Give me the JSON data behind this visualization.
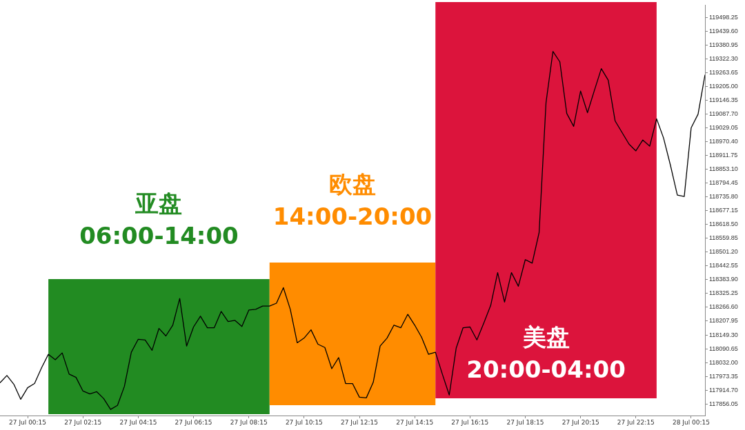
{
  "chart_data": {
    "type": "line",
    "x": [
      "--07-26T23:15",
      "--07-26T23:30",
      "--07-26T23:45",
      "--07-27T00:00",
      "--07-27T00:15",
      "--07-27T00:30",
      "--07-27T00:45",
      "--07-27T01:00",
      "--07-27T01:15",
      "--07-27T01:30",
      "--07-27T01:45",
      "--07-27T02:00",
      "--07-27T02:15",
      "--07-27T02:30",
      "--07-27T02:45",
      "--07-27T03:00",
      "--07-27T03:15",
      "--07-27T03:30",
      "--07-27T03:45",
      "--07-27T04:00",
      "--07-27T04:15",
      "--07-27T04:30",
      "--07-27T04:45",
      "--07-27T05:00",
      "--07-27T05:15",
      "--07-27T05:30",
      "--07-27T05:45",
      "--07-27T06:00",
      "--07-27T06:15",
      "--07-27T06:30",
      "--07-27T06:45",
      "--07-27T07:00",
      "--07-27T07:15",
      "--07-27T07:30",
      "--07-27T07:45",
      "--07-27T08:00",
      "--07-27T08:15",
      "--07-27T08:30",
      "--07-27T08:45",
      "--07-27T09:00",
      "--07-27T09:15",
      "--07-27T09:30",
      "--07-27T09:45",
      "--07-27T10:00",
      "--07-27T10:15",
      "--07-27T10:30",
      "--07-27T10:45",
      "--07-27T11:00",
      "--07-27T11:15",
      "--07-27T11:30",
      "--07-27T11:45",
      "--07-27T12:00",
      "--07-27T12:15",
      "--07-27T12:30",
      "--07-27T12:45",
      "--07-27T13:00",
      "--07-27T13:15",
      "--07-27T13:30",
      "--07-27T13:45",
      "--07-27T14:00",
      "--07-27T14:15",
      "--07-27T14:30",
      "--07-27T14:45",
      "--07-27T15:00",
      "--07-27T15:15",
      "--07-27T15:30",
      "--07-27T15:45",
      "--07-27T16:00",
      "--07-27T16:15",
      "--07-27T16:30",
      "--07-27T16:45",
      "--07-27T17:00",
      "--07-27T17:15",
      "--07-27T17:30",
      "--07-27T17:45",
      "--07-27T18:00",
      "--07-27T18:15",
      "--07-27T18:30",
      "--07-27T18:45",
      "--07-27T19:00",
      "--07-27T19:15",
      "--07-27T19:30",
      "--07-27T19:45",
      "--07-27T20:00",
      "--07-27T20:15",
      "--07-27T20:30",
      "--07-27T20:45",
      "--07-27T21:00",
      "--07-27T21:15",
      "--07-27T21:30",
      "--07-27T21:45",
      "--07-27T22:00",
      "--07-27T22:15",
      "--07-27T22:30",
      "--07-27T22:45",
      "--07-27T23:00",
      "--07-27T23:15",
      "--07-27T23:30",
      "--07-27T23:45",
      "--07-28T00:00",
      "--07-28T00:15",
      "--07-28T00:30",
      "--07-28T00:45"
    ],
    "series": [
      {
        "color": "#000000",
        "values": [
          117946,
          117977,
          117940,
          117876,
          117925,
          117943,
          118009,
          118067,
          118044,
          118073,
          117983,
          117969,
          117911,
          117899,
          117908,
          117879,
          117833,
          117850,
          117931,
          118076,
          118131,
          118128,
          118084,
          118177,
          118145,
          118191,
          118304,
          118102,
          118183,
          118229,
          118180,
          118180,
          118249,
          118206,
          118211,
          118185,
          118255,
          118258,
          118272,
          118272,
          118284,
          118350,
          118258,
          118116,
          118136,
          118171,
          118110,
          118096,
          118006,
          118053,
          117943,
          117943,
          117885,
          117882,
          117948,
          118102,
          118136,
          118191,
          118180,
          118237,
          118191,
          118139,
          118067,
          118076,
          117983,
          117894,
          118093,
          118180,
          118183,
          118128,
          118200,
          118275,
          118414,
          118289,
          118414,
          118356,
          118469,
          118454,
          118584,
          119136,
          119353,
          119309,
          119090,
          119035,
          119185,
          119093,
          119188,
          119280,
          119231,
          119058,
          119009,
          118960,
          118931,
          118977,
          118951,
          119067,
          118986,
          118870,
          118743,
          118737,
          119029,
          119087,
          119254
        ]
      }
    ],
    "xlim": [
      "--07-26T23:15",
      "--07-28T00:45"
    ],
    "xticks": [
      {
        "value": "--07-27T00:15",
        "label": "27 Jul 00:15"
      },
      {
        "value": "--07-27T02:15",
        "label": "27 Jul 02:15"
      },
      {
        "value": "--07-27T04:15",
        "label": "27 Jul 04:15"
      },
      {
        "value": "--07-27T06:15",
        "label": "27 Jul 06:15"
      },
      {
        "value": "--07-27T08:15",
        "label": "27 Jul 08:15"
      },
      {
        "value": "--07-27T10:15",
        "label": "27 Jul 10:15"
      },
      {
        "value": "--07-27T12:15",
        "label": "27 Jul 12:15"
      },
      {
        "value": "--07-27T14:15",
        "label": "27 Jul 14:15"
      },
      {
        "value": "--07-27T16:15",
        "label": "27 Jul 16:15"
      },
      {
        "value": "--07-27T18:15",
        "label": "27 Jul 18:15"
      },
      {
        "value": "--07-27T20:15",
        "label": "27 Jul 20:15"
      },
      {
        "value": "--07-27T22:15",
        "label": "27 Jul 22:15"
      },
      {
        "value": "--07-28T00:15",
        "label": "28 Jul 00:15"
      }
    ],
    "ylim": [
      117807,
      119550
    ],
    "yticks": [
      117856.05,
      {
        "value": 117914.7,
        "label": "117914.70"
      },
      117973.35,
      {
        "value": 118032,
        "label": "118032.00"
      },
      118090.65,
      {
        "value": 118149.3,
        "label": "118149.30"
      },
      118207.95,
      {
        "value": 118266.6,
        "label": "118266.60"
      },
      118325.25,
      {
        "value": 118383.9,
        "label": "118383.90"
      },
      118442.55,
      {
        "value": 118501.2,
        "label": "118501.20"
      },
      118559.85,
      {
        "value": 118618.5,
        "label": "118618.50"
      },
      118677.15,
      {
        "value": 118735.8,
        "label": "118735.80"
      },
      118794.45,
      {
        "value": 118853.1,
        "label": "118853.10"
      },
      118911.75,
      {
        "value": 118970.4,
        "label": "118970.40"
      },
      119029.05,
      {
        "value": 119087.7,
        "label": "119087.70"
      },
      119146.35,
      {
        "value": 119205,
        "label": "119205.00"
      },
      119263.65,
      {
        "value": 119322.3,
        "label": "119322.30"
      },
      119380.95,
      {
        "value": 119439.6,
        "label": "119439.60"
      },
      119498.25
    ],
    "bands": [
      {
        "axis": "x",
        "from": "--07-27T01:00",
        "to": "--07-27T09:00",
        "label": "亚盘\n06:00-14:00",
        "color": "#228b22"
      },
      {
        "axis": "x",
        "from": "--07-27T09:00",
        "to": "--07-27T15:00",
        "label": "欧盘\n14:00-20:00",
        "color": "#ff8c00"
      },
      {
        "axis": "x",
        "from": "--07-27T15:00",
        "to": "--07-27T23:00",
        "label": "美盘\n20:00-04:00",
        "color": "#dc143c"
      }
    ],
    "grid": false,
    "legend": false,
    "marker": "none",
    "line_style": "solid"
  }
}
